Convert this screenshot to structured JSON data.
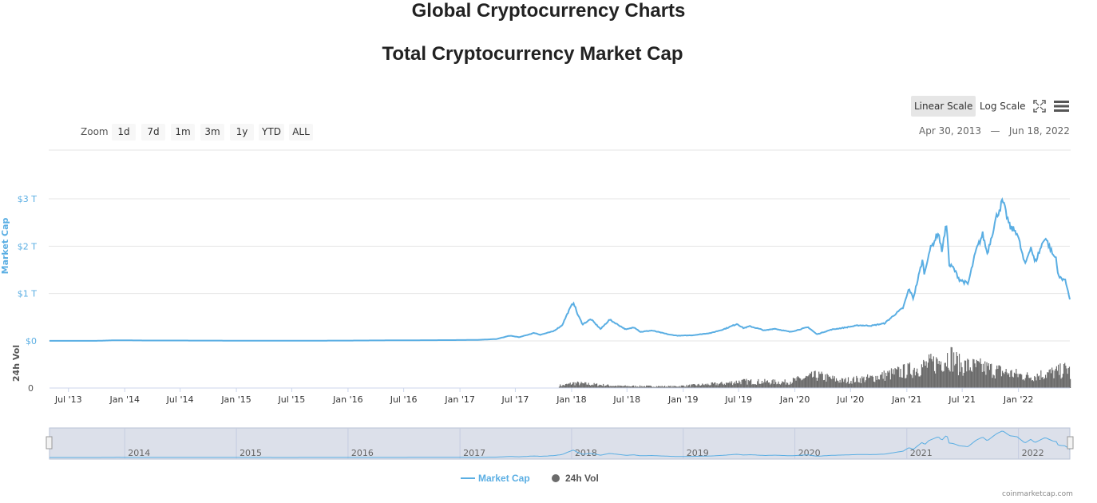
{
  "page": {
    "title": "Global Cryptocurrency Charts",
    "credit": "coinmarketcap.com"
  },
  "toolbar": {
    "linear_scale": "Linear Scale",
    "log_scale": "Log Scale",
    "active_scale": "Linear Scale",
    "fullscreen_icon": "fullscreen-icon",
    "menu_icon": "hamburger-menu-icon"
  },
  "zoom": {
    "label": "Zoom",
    "buttons": [
      "1d",
      "7d",
      "1m",
      "3m",
      "1y",
      "YTD",
      "ALL"
    ]
  },
  "range": {
    "from": "Apr 30, 2013",
    "separator": "—",
    "to": "Jun 18, 2022"
  },
  "colors": {
    "market_cap": "#5aaee3",
    "volume": "#6b6b6b",
    "navigator_fill": "#d8dde8"
  },
  "chart_data": {
    "type": "line",
    "title": "Total Cryptocurrency Market Cap",
    "x_range": [
      "2013-04-30",
      "2022-06-18"
    ],
    "x_tick_labels": [
      "Jul '13",
      "Jan '14",
      "Jul '14",
      "Jan '15",
      "Jul '15",
      "Jan '16",
      "Jul '16",
      "Jan '17",
      "Jul '17",
      "Jan '18",
      "Jul '18",
      "Jan '19",
      "Jul '19",
      "Jan '20",
      "Jul '20",
      "Jan '21",
      "Jul '21",
      "Jan '22"
    ],
    "y_axis": {
      "label": "Market Cap",
      "ticks": [
        "$0",
        "$1 T",
        "$2 T",
        "$3 T"
      ],
      "ylim": [
        0,
        3
      ]
    },
    "volume_axis": {
      "label": "24h Vol",
      "ticks": [
        "0"
      ]
    },
    "navigator_year_labels": [
      "2014",
      "2015",
      "2016",
      "2017",
      "2018",
      "2019",
      "2020",
      "2021",
      "2022"
    ],
    "legend": {
      "position": "bottom-center",
      "entries": [
        "Market Cap",
        "24h Vol"
      ]
    },
    "grid": true,
    "series": [
      {
        "name": "Market Cap",
        "unit": "trillion USD",
        "points": [
          [
            "2013-04-30",
            0.0015
          ],
          [
            "2013-10-01",
            0.002
          ],
          [
            "2013-12-04",
            0.014
          ],
          [
            "2014-03-01",
            0.009
          ],
          [
            "2014-07-01",
            0.008
          ],
          [
            "2015-01-15",
            0.005
          ],
          [
            "2015-07-01",
            0.004
          ],
          [
            "2016-01-01",
            0.007
          ],
          [
            "2016-06-01",
            0.012
          ],
          [
            "2016-12-31",
            0.018
          ],
          [
            "2017-03-01",
            0.022
          ],
          [
            "2017-05-01",
            0.04
          ],
          [
            "2017-06-12",
            0.11
          ],
          [
            "2017-07-15",
            0.08
          ],
          [
            "2017-09-01",
            0.17
          ],
          [
            "2017-09-20",
            0.13
          ],
          [
            "2017-11-01",
            0.2
          ],
          [
            "2017-12-01",
            0.33
          ],
          [
            "2017-12-20",
            0.6
          ],
          [
            "2018-01-07",
            0.82
          ],
          [
            "2018-01-20",
            0.57
          ],
          [
            "2018-02-06",
            0.35
          ],
          [
            "2018-03-05",
            0.46
          ],
          [
            "2018-04-06",
            0.25
          ],
          [
            "2018-05-05",
            0.45
          ],
          [
            "2018-06-28",
            0.24
          ],
          [
            "2018-07-25",
            0.29
          ],
          [
            "2018-08-14",
            0.19
          ],
          [
            "2018-09-20",
            0.22
          ],
          [
            "2018-11-20",
            0.13
          ],
          [
            "2018-12-15",
            0.11
          ],
          [
            "2019-02-01",
            0.12
          ],
          [
            "2019-04-03",
            0.17
          ],
          [
            "2019-05-15",
            0.25
          ],
          [
            "2019-06-26",
            0.36
          ],
          [
            "2019-07-17",
            0.27
          ],
          [
            "2019-08-07",
            0.31
          ],
          [
            "2019-09-25",
            0.22
          ],
          [
            "2019-10-26",
            0.26
          ],
          [
            "2019-12-17",
            0.19
          ],
          [
            "2020-02-13",
            0.29
          ],
          [
            "2020-03-13",
            0.14
          ],
          [
            "2020-04-30",
            0.24
          ],
          [
            "2020-06-01",
            0.27
          ],
          [
            "2020-07-28",
            0.33
          ],
          [
            "2020-09-05",
            0.32
          ],
          [
            "2020-10-20",
            0.37
          ],
          [
            "2020-11-25",
            0.57
          ],
          [
            "2020-12-20",
            0.7
          ],
          [
            "2021-01-08",
            1.1
          ],
          [
            "2021-01-22",
            0.9
          ],
          [
            "2021-02-21",
            1.7
          ],
          [
            "2021-02-28",
            1.4
          ],
          [
            "2021-03-13",
            1.85
          ],
          [
            "2021-04-14",
            2.3
          ],
          [
            "2021-04-25",
            1.9
          ],
          [
            "2021-05-12",
            2.5
          ],
          [
            "2021-05-19",
            1.6
          ],
          [
            "2021-06-01",
            1.55
          ],
          [
            "2021-06-22",
            1.3
          ],
          [
            "2021-07-20",
            1.2
          ],
          [
            "2021-08-15",
            1.9
          ],
          [
            "2021-09-06",
            2.25
          ],
          [
            "2021-09-21",
            1.85
          ],
          [
            "2021-10-20",
            2.6
          ],
          [
            "2021-11-10",
            2.95
          ],
          [
            "2021-12-04",
            2.4
          ],
          [
            "2021-12-27",
            2.3
          ],
          [
            "2022-01-22",
            1.6
          ],
          [
            "2022-02-10",
            2.0
          ],
          [
            "2022-02-24",
            1.65
          ],
          [
            "2022-03-29",
            2.2
          ],
          [
            "2022-04-25",
            1.8
          ],
          [
            "2022-05-05",
            1.75
          ],
          [
            "2022-05-11",
            1.35
          ],
          [
            "2022-06-01",
            1.3
          ],
          [
            "2022-06-13",
            1.05
          ],
          [
            "2022-06-18",
            0.88
          ]
        ]
      },
      {
        "name": "24h Vol",
        "unit": "relative",
        "points": [
          [
            "2017-12-01",
            0.08
          ],
          [
            "2018-01-07",
            0.15
          ],
          [
            "2018-06-01",
            0.06
          ],
          [
            "2018-12-01",
            0.05
          ],
          [
            "2019-05-15",
            0.14
          ],
          [
            "2019-07-01",
            0.2
          ],
          [
            "2019-12-01",
            0.18
          ],
          [
            "2020-03-13",
            0.38
          ],
          [
            "2020-06-01",
            0.22
          ],
          [
            "2020-09-01",
            0.3
          ],
          [
            "2021-01-10",
            0.55
          ],
          [
            "2021-04-20",
            0.82
          ],
          [
            "2021-05-19",
            1.0
          ],
          [
            "2021-06-22",
            0.7
          ],
          [
            "2021-09-07",
            0.62
          ],
          [
            "2021-12-04",
            0.45
          ],
          [
            "2022-02-01",
            0.35
          ],
          [
            "2022-05-11",
            0.5
          ],
          [
            "2022-06-13",
            0.6
          ],
          [
            "2022-06-18",
            0.4
          ]
        ]
      }
    ]
  }
}
